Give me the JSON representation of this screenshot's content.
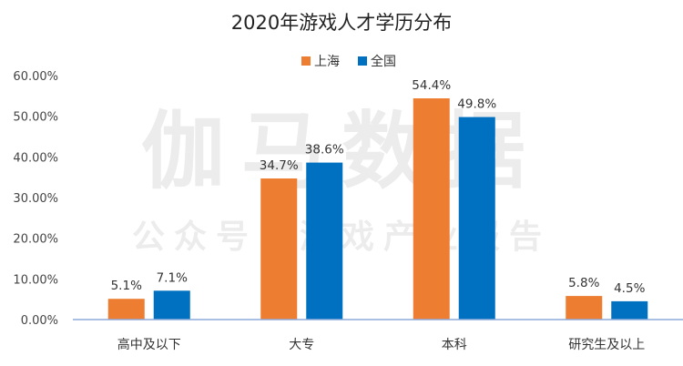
{
  "watermark": {
    "main": "伽马数据",
    "sub": "公众号：游戏产业报告"
  },
  "chart_data": {
    "type": "bar",
    "title": "2020年游戏人才学历分布",
    "categories": [
      "高中及以下",
      "大专",
      "本科",
      "研究生及以上"
    ],
    "series": [
      {
        "name": "上海",
        "color": "#ed7d31",
        "values": [
          5.1,
          34.7,
          54.4,
          5.8
        ],
        "labels": [
          "5.1%",
          "34.7%",
          "54.4%",
          "5.8%"
        ]
      },
      {
        "name": "全国",
        "color": "#0070c0",
        "values": [
          7.1,
          38.6,
          49.8,
          4.5
        ],
        "labels": [
          "7.1%",
          "38.6%",
          "49.8%",
          "4.5%"
        ]
      }
    ],
    "ylim": [
      0,
      60
    ],
    "yticks": [
      0,
      10,
      20,
      30,
      40,
      50,
      60
    ],
    "ytick_labels": [
      "0.00%",
      "10.00%",
      "20.00%",
      "30.00%",
      "40.00%",
      "50.00%",
      "60.00%"
    ],
    "xlabel": "",
    "ylabel": "",
    "legend_position": "top-center",
    "grid": false
  }
}
